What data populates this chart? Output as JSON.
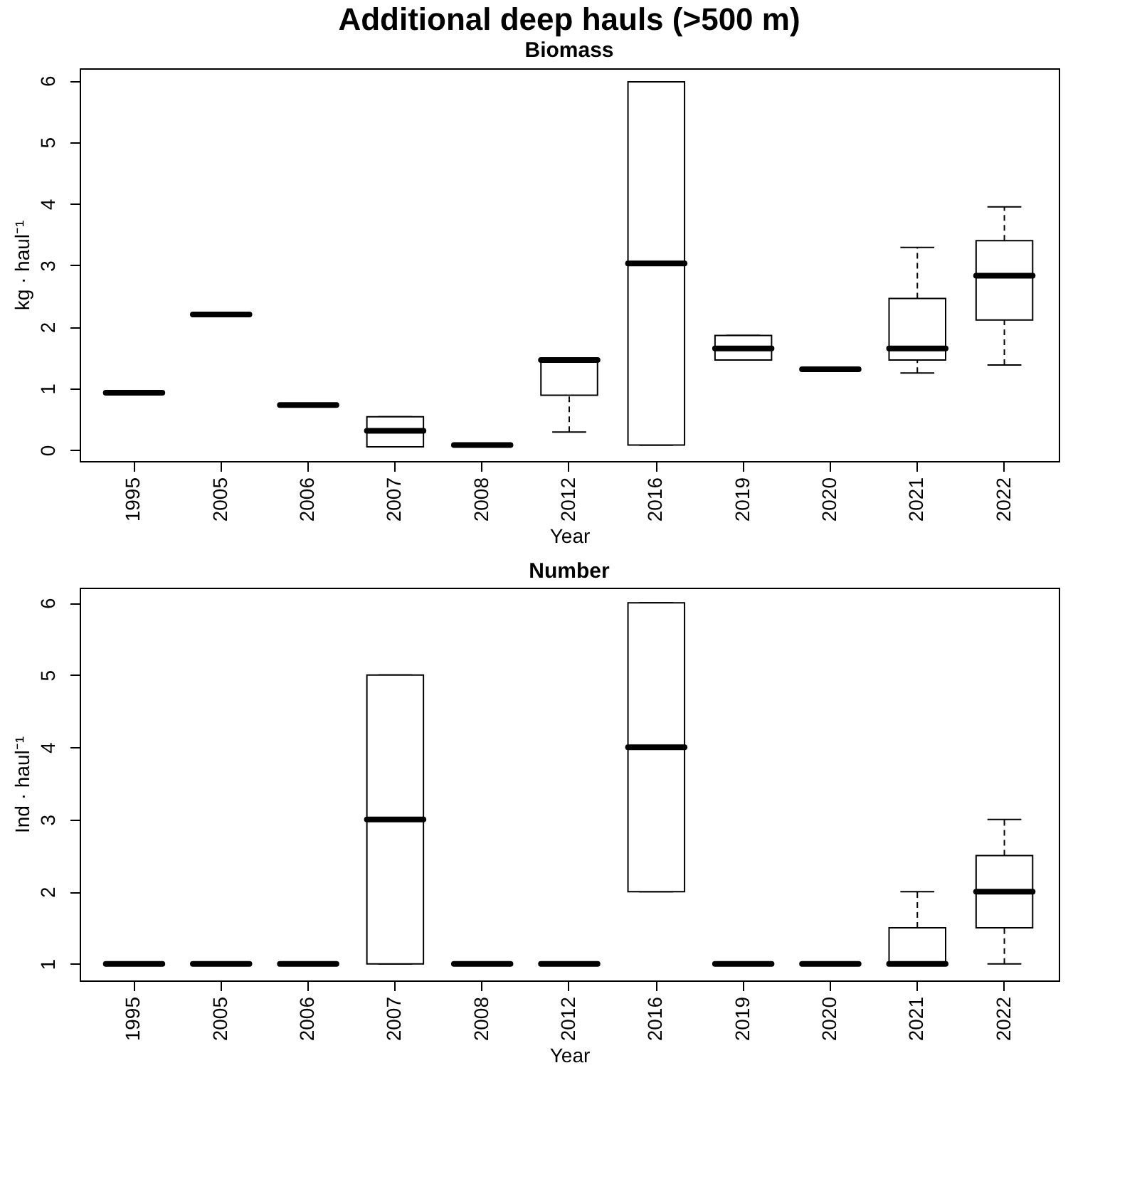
{
  "chart_data": [
    {
      "type": "box",
      "title": "Additional deep hauls (>500 m)",
      "subtitle": "Biomass",
      "xlabel": "Year",
      "ylabel": "kg · haul⁻¹",
      "categories": [
        "1995",
        "2005",
        "2006",
        "2007",
        "2008",
        "2012",
        "2016",
        "2019",
        "2020",
        "2021",
        "2022"
      ],
      "ylim": [
        -0.18,
        6.2
      ],
      "yticks": [
        0,
        1,
        2,
        3,
        4,
        5,
        6
      ],
      "grid": false,
      "boxes": [
        {
          "low": 0.93,
          "q1": 0.93,
          "median": 0.93,
          "q3": 0.93,
          "high": 0.93
        },
        {
          "low": 2.2,
          "q1": 2.2,
          "median": 2.2,
          "q3": 2.2,
          "high": 2.2
        },
        {
          "low": 0.73,
          "q1": 0.73,
          "median": 0.73,
          "q3": 0.73,
          "high": 0.73
        },
        {
          "low": 0.05,
          "q1": 0.05,
          "median": 0.31,
          "q3": 0.54,
          "high": 0.54
        },
        {
          "low": 0.08,
          "q1": 0.08,
          "median": 0.08,
          "q3": 0.08,
          "high": 0.08
        },
        {
          "low": 0.29,
          "q1": 0.89,
          "median": 1.46,
          "q3": 1.48,
          "high": 1.48
        },
        {
          "low": 0.08,
          "q1": 0.08,
          "median": 3.03,
          "q3": 5.98,
          "high": 5.98
        },
        {
          "low": 1.46,
          "q1": 1.46,
          "median": 1.65,
          "q3": 1.86,
          "high": 1.86
        },
        {
          "low": 1.31,
          "q1": 1.31,
          "median": 1.31,
          "q3": 1.31,
          "high": 1.31
        },
        {
          "low": 1.25,
          "q1": 1.46,
          "median": 1.65,
          "q3": 2.46,
          "high": 3.29
        },
        {
          "low": 1.38,
          "q1": 2.11,
          "median": 2.83,
          "q3": 3.4,
          "high": 3.95
        }
      ]
    },
    {
      "type": "box",
      "title": "Number",
      "xlabel": "Year",
      "ylabel": "Ind · haul⁻¹",
      "categories": [
        "1995",
        "2005",
        "2006",
        "2007",
        "2008",
        "2012",
        "2016",
        "2019",
        "2020",
        "2021",
        "2022"
      ],
      "ylim": [
        0.77,
        6.21
      ],
      "yticks": [
        1,
        2,
        3,
        4,
        5,
        6
      ],
      "grid": false,
      "boxes": [
        {
          "low": 1,
          "q1": 1,
          "median": 1,
          "q3": 1,
          "high": 1
        },
        {
          "low": 1,
          "q1": 1,
          "median": 1,
          "q3": 1,
          "high": 1
        },
        {
          "low": 1,
          "q1": 1,
          "median": 1,
          "q3": 1,
          "high": 1
        },
        {
          "low": 1,
          "q1": 1,
          "median": 3,
          "q3": 5,
          "high": 5
        },
        {
          "low": 1,
          "q1": 1,
          "median": 1,
          "q3": 1,
          "high": 1
        },
        {
          "low": 1,
          "q1": 1,
          "median": 1,
          "q3": 1,
          "high": 1
        },
        {
          "low": 2,
          "q1": 2,
          "median": 4,
          "q3": 6,
          "high": 6
        },
        {
          "low": 1,
          "q1": 1,
          "median": 1,
          "q3": 1,
          "high": 1
        },
        {
          "low": 1,
          "q1": 1,
          "median": 1,
          "q3": 1,
          "high": 1
        },
        {
          "low": 1,
          "q1": 1,
          "median": 1,
          "q3": 1.5,
          "high": 2
        },
        {
          "low": 1,
          "q1": 1.5,
          "median": 2,
          "q3": 2.5,
          "high": 3
        }
      ]
    }
  ]
}
